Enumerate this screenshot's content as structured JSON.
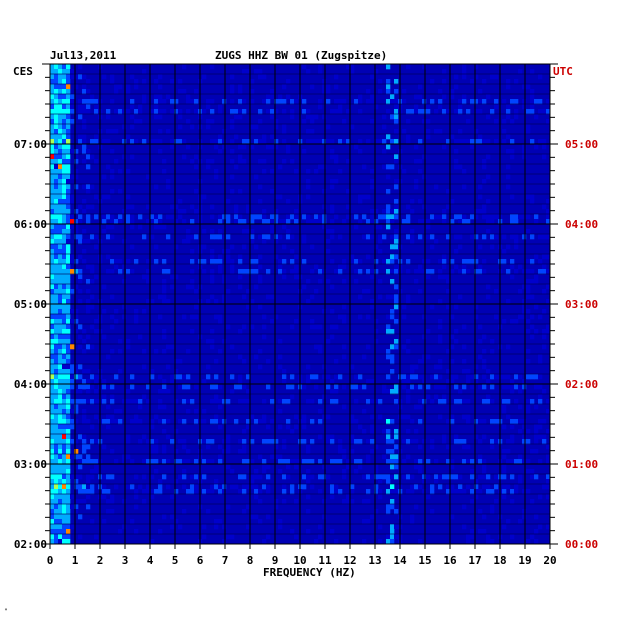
{
  "chart_data": {
    "type": "heatmap",
    "title": "ZUGS HHZ BW 01 (Zugspitze)",
    "date": "Jul13,2011",
    "xlabel": "FREQUENCY (HZ)",
    "x_ticks": [
      "0",
      "1",
      "2",
      "3",
      "4",
      "5",
      "6",
      "7",
      "8",
      "9",
      "10",
      "11",
      "12",
      "13",
      "14",
      "15",
      "16",
      "17",
      "18",
      "19",
      "20"
    ],
    "xlim": [
      0,
      20
    ],
    "left_axis_label": "CES",
    "left_ticks": [
      "07:00",
      "06:00",
      "05:00",
      "04:00",
      "03:00",
      "02:00"
    ],
    "right_axis_label": "UTC",
    "right_ticks": [
      "05:00",
      "04:00",
      "03:00",
      "02:00",
      "01:00",
      "00:00"
    ],
    "time_range_utc": [
      "00:00",
      "05:45"
    ],
    "colormap": [
      "#00007f",
      "#0000cc",
      "#0044ff",
      "#00aaff",
      "#00ffff",
      "#aaff55",
      "#ffff00",
      "#ff8800",
      "#ff0000"
    ],
    "grid": true
  },
  "colors": {
    "background": "#ffffff",
    "plot_background": "#0000b4",
    "grid": "#000000",
    "left_axis_text": "#000000",
    "right_axis_text": "#cc0000"
  }
}
